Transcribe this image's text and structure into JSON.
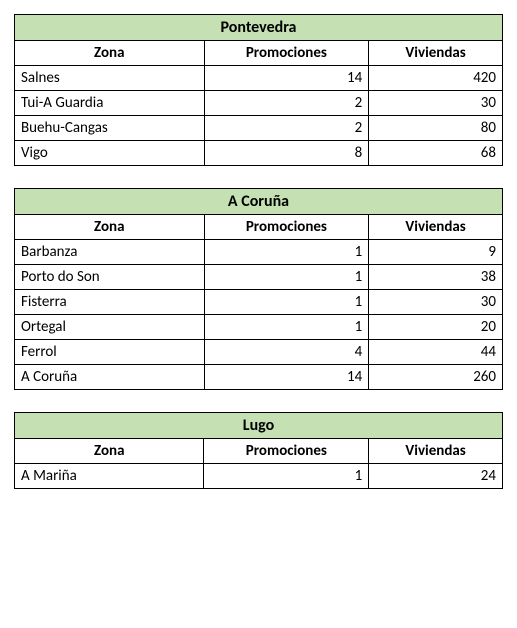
{
  "tables": [
    {
      "title": "Pontevedra",
      "columns": [
        "Zona",
        "Promociones",
        "Viviendas"
      ],
      "title_bg": "#c5e0b3",
      "border_color": "#000000",
      "rows": [
        {
          "zone": "Salnes",
          "promociones": 14,
          "viviendas": 420
        },
        {
          "zone": "Tui-A Guardia",
          "promociones": 2,
          "viviendas": 30
        },
        {
          "zone": "Buehu-Cangas",
          "promociones": 2,
          "viviendas": 80
        },
        {
          "zone": "Vigo",
          "promociones": 8,
          "viviendas": 68
        }
      ]
    },
    {
      "title": "A Coruña",
      "columns": [
        "Zona",
        "Promociones",
        "Viviendas"
      ],
      "title_bg": "#c5e0b3",
      "border_color": "#000000",
      "rows": [
        {
          "zone": "Barbanza",
          "promociones": 1,
          "viviendas": 9
        },
        {
          "zone": "Porto do Son",
          "promociones": 1,
          "viviendas": 38
        },
        {
          "zone": "Fisterra",
          "promociones": 1,
          "viviendas": 30
        },
        {
          "zone": "Ortegal",
          "promociones": 1,
          "viviendas": 20
        },
        {
          "zone": "Ferrol",
          "promociones": 4,
          "viviendas": 44
        },
        {
          "zone": "A Coruña",
          "promociones": 14,
          "viviendas": 260
        }
      ]
    },
    {
      "title": "Lugo",
      "columns": [
        "Zona",
        "Promociones",
        "Viviendas"
      ],
      "title_bg": "#c5e0b3",
      "border_color": "#000000",
      "rows": [
        {
          "zone": "A Mariña",
          "promociones": 1,
          "viviendas": 24
        }
      ]
    }
  ]
}
